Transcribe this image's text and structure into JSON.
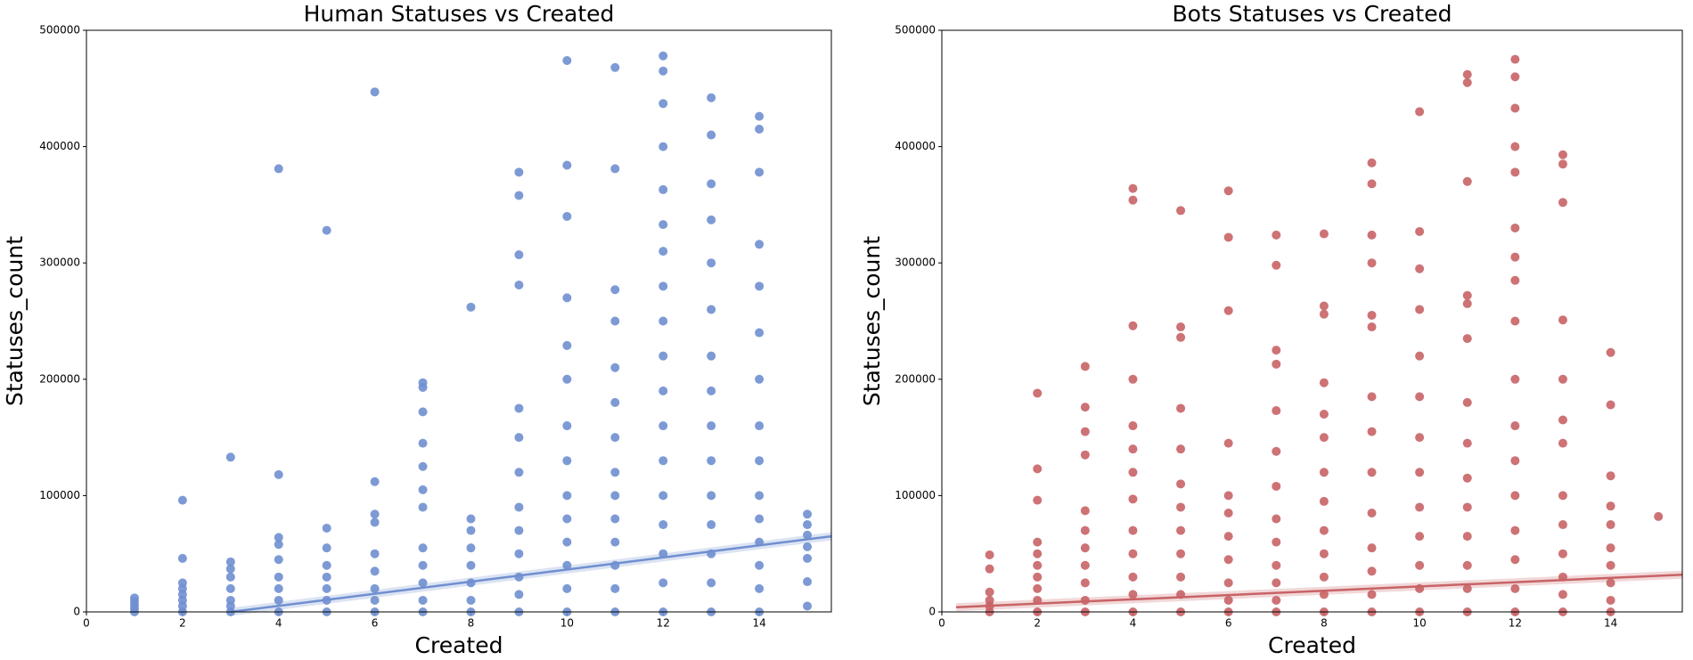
{
  "chart_data": [
    {
      "type": "scatter",
      "title": "Human Statuses vs Created",
      "xlabel": "Created",
      "ylabel": "Statuses_count",
      "xlim": [
        0,
        15.5
      ],
      "ylim": [
        0,
        500000
      ],
      "xticks": [
        0,
        2,
        4,
        6,
        8,
        10,
        12,
        14
      ],
      "yticks": [
        0,
        100000,
        200000,
        300000,
        400000,
        500000
      ],
      "series": [
        {
          "color": "#6f8fd0",
          "x": [
            1,
            1,
            1,
            1,
            1,
            2,
            2,
            2,
            2,
            2,
            2,
            2,
            2,
            3,
            3,
            3,
            3,
            3,
            3,
            3,
            3,
            4,
            4,
            4,
            4,
            4,
            4,
            4,
            4,
            4,
            5,
            5,
            5,
            5,
            5,
            5,
            5,
            5,
            6,
            6,
            6,
            6,
            6,
            6,
            6,
            6,
            6,
            7,
            7,
            7,
            7,
            7,
            7,
            7,
            7,
            7,
            7,
            7,
            7,
            8,
            8,
            8,
            8,
            8,
            8,
            8,
            8,
            9,
            9,
            9,
            9,
            9,
            9,
            9,
            9,
            9,
            9,
            9,
            9,
            9,
            10,
            10,
            10,
            10,
            10,
            10,
            10,
            10,
            10,
            10,
            10,
            10,
            10,
            10,
            11,
            11,
            11,
            11,
            11,
            11,
            11,
            11,
            11,
            11,
            11,
            11,
            11,
            11,
            12,
            12,
            12,
            12,
            12,
            12,
            12,
            12,
            12,
            12,
            12,
            12,
            12,
            12,
            12,
            12,
            12,
            12,
            13,
            13,
            13,
            13,
            13,
            13,
            13,
            13,
            13,
            13,
            13,
            13,
            13,
            13,
            13,
            14,
            14,
            14,
            14,
            14,
            14,
            14,
            14,
            14,
            14,
            14,
            14,
            14,
            14,
            14,
            15,
            15,
            15,
            15,
            15,
            15,
            15
          ],
          "values": [
            0,
            3000,
            6000,
            9000,
            12000,
            0,
            5000,
            10000,
            15000,
            20000,
            25000,
            46000,
            96000,
            0,
            5000,
            10000,
            20000,
            30000,
            37000,
            43000,
            133000,
            0,
            10000,
            20000,
            30000,
            45000,
            58000,
            64000,
            118000,
            381000,
            0,
            10000,
            20000,
            30000,
            40000,
            55000,
            72000,
            328000,
            0,
            10000,
            20000,
            35000,
            50000,
            77000,
            84000,
            112000,
            447000,
            0,
            10000,
            25000,
            40000,
            55000,
            90000,
            105000,
            125000,
            145000,
            172000,
            193000,
            197000,
            0,
            10000,
            25000,
            40000,
            55000,
            70000,
            80000,
            262000,
            0,
            15000,
            30000,
            50000,
            70000,
            90000,
            120000,
            150000,
            175000,
            281000,
            307000,
            358000,
            378000,
            0,
            20000,
            40000,
            60000,
            80000,
            100000,
            130000,
            160000,
            200000,
            229000,
            270000,
            340000,
            384000,
            474000,
            0,
            20000,
            40000,
            60000,
            80000,
            100000,
            120000,
            150000,
            180000,
            210000,
            250000,
            277000,
            381000,
            468000,
            0,
            25000,
            50000,
            75000,
            100000,
            130000,
            160000,
            190000,
            220000,
            250000,
            280000,
            310000,
            333000,
            363000,
            400000,
            437000,
            465000,
            478000,
            0,
            25000,
            50000,
            75000,
            100000,
            130000,
            160000,
            190000,
            220000,
            260000,
            300000,
            337000,
            368000,
            410000,
            442000,
            0,
            20000,
            40000,
            60000,
            80000,
            100000,
            130000,
            160000,
            200000,
            240000,
            280000,
            316000,
            378000,
            415000,
            426000,
            5000,
            26000,
            46000,
            56000,
            66000,
            75000,
            84000
          ]
        }
      ],
      "trend": {
        "color": "#6f8fd0",
        "x": [
          3,
          15.5
        ],
        "values": [
          0,
          65000
        ]
      }
    },
    {
      "type": "scatter",
      "title": "Bots Statuses vs Created",
      "xlabel": "Created",
      "ylabel": "Statuses_count",
      "xlim": [
        0,
        15.5
      ],
      "ylim": [
        0,
        500000
      ],
      "xticks": [
        0,
        2,
        4,
        6,
        8,
        10,
        12,
        14
      ],
      "yticks": [
        0,
        100000,
        200000,
        300000,
        400000,
        500000
      ],
      "series": [
        {
          "color": "#c86366",
          "x": [
            1,
            1,
            1,
            1,
            1,
            1,
            2,
            2,
            2,
            2,
            2,
            2,
            2,
            2,
            2,
            2,
            3,
            3,
            3,
            3,
            3,
            3,
            3,
            3,
            3,
            3,
            3,
            4,
            4,
            4,
            4,
            4,
            4,
            4,
            4,
            4,
            4,
            4,
            4,
            4,
            5,
            5,
            5,
            5,
            5,
            5,
            5,
            5,
            5,
            5,
            5,
            5,
            6,
            6,
            6,
            6,
            6,
            6,
            6,
            6,
            6,
            6,
            6,
            7,
            7,
            7,
            7,
            7,
            7,
            7,
            7,
            7,
            7,
            7,
            7,
            7,
            8,
            8,
            8,
            8,
            8,
            8,
            8,
            8,
            8,
            8,
            8,
            8,
            8,
            9,
            9,
            9,
            9,
            9,
            9,
            9,
            9,
            9,
            9,
            9,
            9,
            9,
            9,
            10,
            10,
            10,
            10,
            10,
            10,
            10,
            10,
            10,
            10,
            10,
            10,
            10,
            11,
            11,
            11,
            11,
            11,
            11,
            11,
            11,
            11,
            11,
            11,
            11,
            11,
            11,
            12,
            12,
            12,
            12,
            12,
            12,
            12,
            12,
            12,
            12,
            12,
            12,
            12,
            12,
            12,
            12,
            12,
            13,
            13,
            13,
            13,
            13,
            13,
            13,
            13,
            13,
            13,
            13,
            13,
            13,
            14,
            14,
            14,
            14,
            14,
            14,
            14,
            14,
            14,
            14,
            15
          ],
          "values": [
            0,
            5000,
            10000,
            17000,
            37000,
            49000,
            0,
            10000,
            20000,
            30000,
            40000,
            50000,
            60000,
            96000,
            123000,
            188000,
            0,
            10000,
            25000,
            40000,
            55000,
            70000,
            87000,
            135000,
            155000,
            176000,
            211000,
            0,
            15000,
            30000,
            50000,
            70000,
            97000,
            120000,
            140000,
            160000,
            200000,
            246000,
            354000,
            364000,
            0,
            15000,
            30000,
            50000,
            70000,
            90000,
            110000,
            140000,
            175000,
            236000,
            245000,
            345000,
            0,
            10000,
            25000,
            45000,
            65000,
            85000,
            100000,
            145000,
            259000,
            322000,
            362000,
            0,
            10000,
            25000,
            40000,
            60000,
            80000,
            108000,
            138000,
            173000,
            213000,
            225000,
            298000,
            324000,
            0,
            15000,
            30000,
            50000,
            70000,
            95000,
            120000,
            150000,
            170000,
            197000,
            256000,
            263000,
            325000,
            0,
            15000,
            35000,
            55000,
            85000,
            120000,
            155000,
            185000,
            245000,
            255000,
            300000,
            324000,
            368000,
            386000,
            0,
            20000,
            40000,
            65000,
            90000,
            120000,
            150000,
            185000,
            220000,
            260000,
            295000,
            327000,
            430000,
            0,
            20000,
            40000,
            65000,
            90000,
            115000,
            145000,
            180000,
            235000,
            265000,
            272000,
            370000,
            455000,
            462000,
            0,
            20000,
            45000,
            70000,
            100000,
            130000,
            160000,
            200000,
            250000,
            285000,
            305000,
            330000,
            378000,
            400000,
            433000,
            460000,
            475000,
            0,
            15000,
            30000,
            50000,
            75000,
            100000,
            145000,
            165000,
            200000,
            251000,
            352000,
            385000,
            393000,
            0,
            10000,
            25000,
            40000,
            55000,
            75000,
            91000,
            117000,
            178000,
            223000,
            82000
          ]
        }
      ],
      "trend": {
        "color": "#c86366",
        "x": [
          0.3,
          15.5
        ],
        "values": [
          4000,
          32000
        ]
      }
    }
  ]
}
